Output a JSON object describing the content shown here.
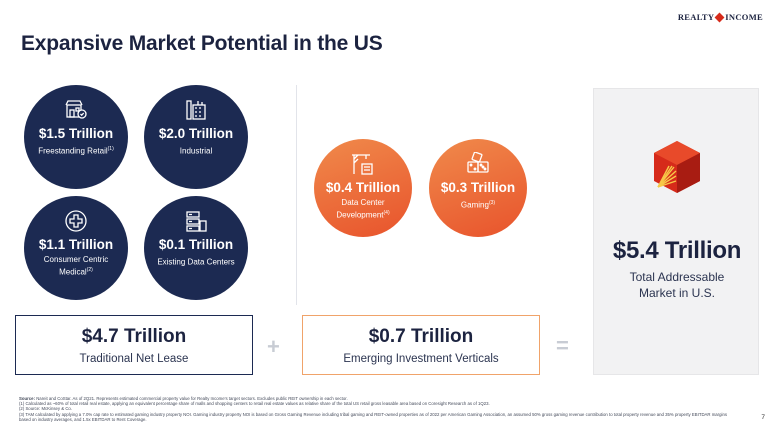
{
  "header": {
    "logo_text_left": "REALTY",
    "logo_text_right": "INCOME",
    "title": "Expansive Market Potential in the US"
  },
  "traditional": {
    "circles": [
      {
        "amount": "$1.5 Trillion",
        "label": "Freestanding Retail",
        "footnote": "(1)",
        "icon": "storefront-icon"
      },
      {
        "amount": "$2.0 Trillion",
        "label": "Industrial",
        "footnote": "",
        "icon": "factory-icon"
      },
      {
        "amount": "$1.1 Trillion",
        "label": "Consumer Centric Medical",
        "footnote": "(2)",
        "icon": "medical-cross-icon"
      },
      {
        "amount": "$0.1 Trillion",
        "label": "Existing Data Centers",
        "footnote": "",
        "icon": "server-icon"
      }
    ],
    "summary_amount": "$4.7 Trillion",
    "summary_label": "Traditional Net Lease"
  },
  "emerging": {
    "circles": [
      {
        "amount": "$0.4 Trillion",
        "label": "Data Center Development",
        "footnote": "(4)",
        "icon": "crane-icon"
      },
      {
        "amount": "$0.3 Trillion",
        "label": "Gaming",
        "footnote": "(3)",
        "icon": "dice-icon"
      }
    ],
    "summary_amount": "$0.7 Trillion",
    "summary_label": "Emerging Investment Verticals"
  },
  "operators": {
    "plus": "+",
    "equals": "="
  },
  "total": {
    "amount": "$5.4 Trillion",
    "label_line1": "Total Addressable",
    "label_line2": "Market in U.S."
  },
  "footnotes": {
    "source_label": "Source:",
    "source_text": "Nareit and CoStar. As of 2Q21. Represents estimated commercial property value for Realty Income's target sectors. Excludes public REIT ownership in each sector.",
    "note1": "(1) Calculated as ~60% of total retail real estate, applying an equivalent percentage share of malls and shopping centers to retail real estate values as relative share of the total US retail gross leasable area based on Coresight Research as of 1Q23.",
    "note2": "(2) Source: McKinsey & Co.",
    "note3": "(3) TAM calculated by applying a 7.0% cap rate to estimated gaming industry property NOI. Gaming industry property NOI is based on Gross Gaming Revenue including tribal gaming and REIT-owned properties as of 2022 per American Gaming Association, an assumed 50% gross gaming revenue contribution to total property revenue and 35% property EBITDAR margins based on industry averages, and 1.5x EBITDAR to Rent Coverage."
  },
  "page_number": "7",
  "colors": {
    "navy": "#1c2a52",
    "orange": "#e8532c",
    "accent_red": "#d62a1a",
    "panel_gray": "#f2f2f3"
  }
}
